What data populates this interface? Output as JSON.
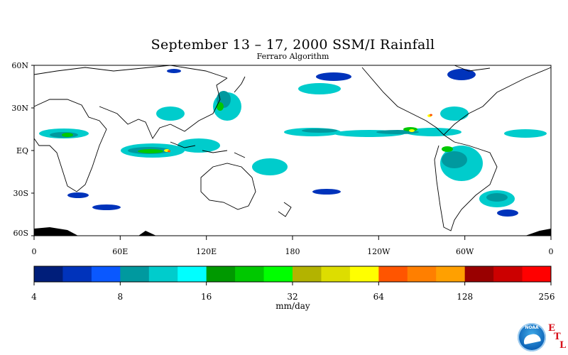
{
  "title": "September 13 – 17, 2000 SSM/I Rainfall",
  "subtitle": "Ferraro Algorithm",
  "map": {
    "lat_labels": [
      "60N",
      "30N",
      "EQ",
      "30S",
      "60S"
    ],
    "lon_labels": [
      "0",
      "60E",
      "120E",
      "180",
      "120W",
      "60W",
      "0"
    ],
    "lat_range": [
      -63,
      63
    ],
    "lon_range": [
      0,
      360
    ],
    "background": "#ffffff",
    "coast_color": "#000000"
  },
  "colorbar": {
    "units": "mm/day",
    "tick_labels": [
      "4",
      "8",
      "16",
      "32",
      "64",
      "128",
      "256"
    ],
    "scale": "log2",
    "colors": [
      "#001e7a",
      "#0033bb",
      "#0a58ff",
      "#00999f",
      "#00cccc",
      "#00ffff",
      "#009900",
      "#00c800",
      "#00ff00",
      "#b3b300",
      "#dddd00",
      "#ffff00",
      "#ff5500",
      "#ff7f00",
      "#ffa000",
      "#990000",
      "#cc0000",
      "#ff0000"
    ]
  },
  "logo": {
    "name": "noaa-logo",
    "text": "NOAA"
  },
  "etl_letters": [
    "E",
    "T",
    "L"
  ]
}
